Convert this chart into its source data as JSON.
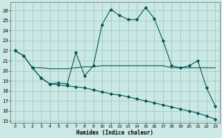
{
  "xlabel": "Humidex (Indice chaleur)",
  "bg_color": "#cce8e4",
  "grid_color": "#99cccc",
  "line_color": "#005555",
  "xlim": [
    -0.5,
    23.5
  ],
  "ylim": [
    14.8,
    26.8
  ],
  "yticks": [
    15,
    16,
    17,
    18,
    19,
    20,
    21,
    22,
    23,
    24,
    25,
    26
  ],
  "xticks": [
    0,
    1,
    2,
    3,
    4,
    5,
    6,
    7,
    8,
    9,
    10,
    11,
    12,
    13,
    14,
    15,
    16,
    17,
    18,
    19,
    20,
    21,
    22,
    23
  ],
  "line1_x": [
    0,
    1,
    2,
    3,
    4,
    5,
    6,
    7,
    8,
    9,
    10,
    11,
    12,
    13,
    14,
    15,
    16,
    17,
    18,
    19,
    20,
    21,
    22,
    23
  ],
  "line1_y": [
    22.0,
    21.5,
    20.3,
    19.3,
    18.7,
    18.8,
    18.7,
    21.8,
    19.5,
    20.5,
    24.6,
    26.1,
    25.5,
    25.1,
    25.1,
    26.3,
    25.2,
    23.0,
    20.5,
    20.3,
    20.5,
    21.0,
    18.3,
    16.5
  ],
  "line2_x": [
    2,
    3,
    4,
    5,
    6,
    7,
    8,
    9,
    10,
    11,
    12,
    13,
    14,
    15,
    16,
    17,
    18,
    19,
    20,
    21,
    22,
    23
  ],
  "line2_y": [
    20.3,
    20.3,
    20.2,
    20.2,
    20.2,
    20.3,
    20.4,
    20.4,
    20.5,
    20.5,
    20.5,
    20.5,
    20.5,
    20.5,
    20.5,
    20.5,
    20.3,
    20.3,
    20.3,
    20.3,
    20.3,
    20.3
  ],
  "line3_x": [
    0,
    1,
    2,
    3,
    4,
    5,
    6,
    7,
    8,
    9,
    10,
    11,
    12,
    13,
    14,
    15,
    16,
    17,
    18,
    19,
    20,
    21,
    22,
    23
  ],
  "line3_y": [
    22.0,
    21.5,
    20.3,
    19.3,
    18.7,
    18.6,
    18.5,
    18.4,
    18.3,
    18.1,
    17.9,
    17.7,
    17.6,
    17.4,
    17.2,
    17.0,
    16.8,
    16.6,
    16.4,
    16.2,
    16.0,
    15.8,
    15.5,
    15.2
  ],
  "line1_marker_x": [
    0,
    1,
    2,
    3,
    4,
    5,
    6,
    7,
    8,
    9,
    10,
    11,
    12,
    13,
    14,
    15,
    16,
    17,
    18,
    19,
    20,
    21,
    22,
    23
  ],
  "line1_marker_y": [
    22.0,
    21.5,
    20.3,
    19.3,
    18.7,
    18.8,
    18.7,
    21.8,
    19.5,
    20.5,
    24.6,
    26.1,
    25.5,
    25.1,
    25.1,
    26.3,
    25.2,
    23.0,
    20.5,
    20.3,
    20.5,
    21.0,
    18.3,
    16.5
  ]
}
